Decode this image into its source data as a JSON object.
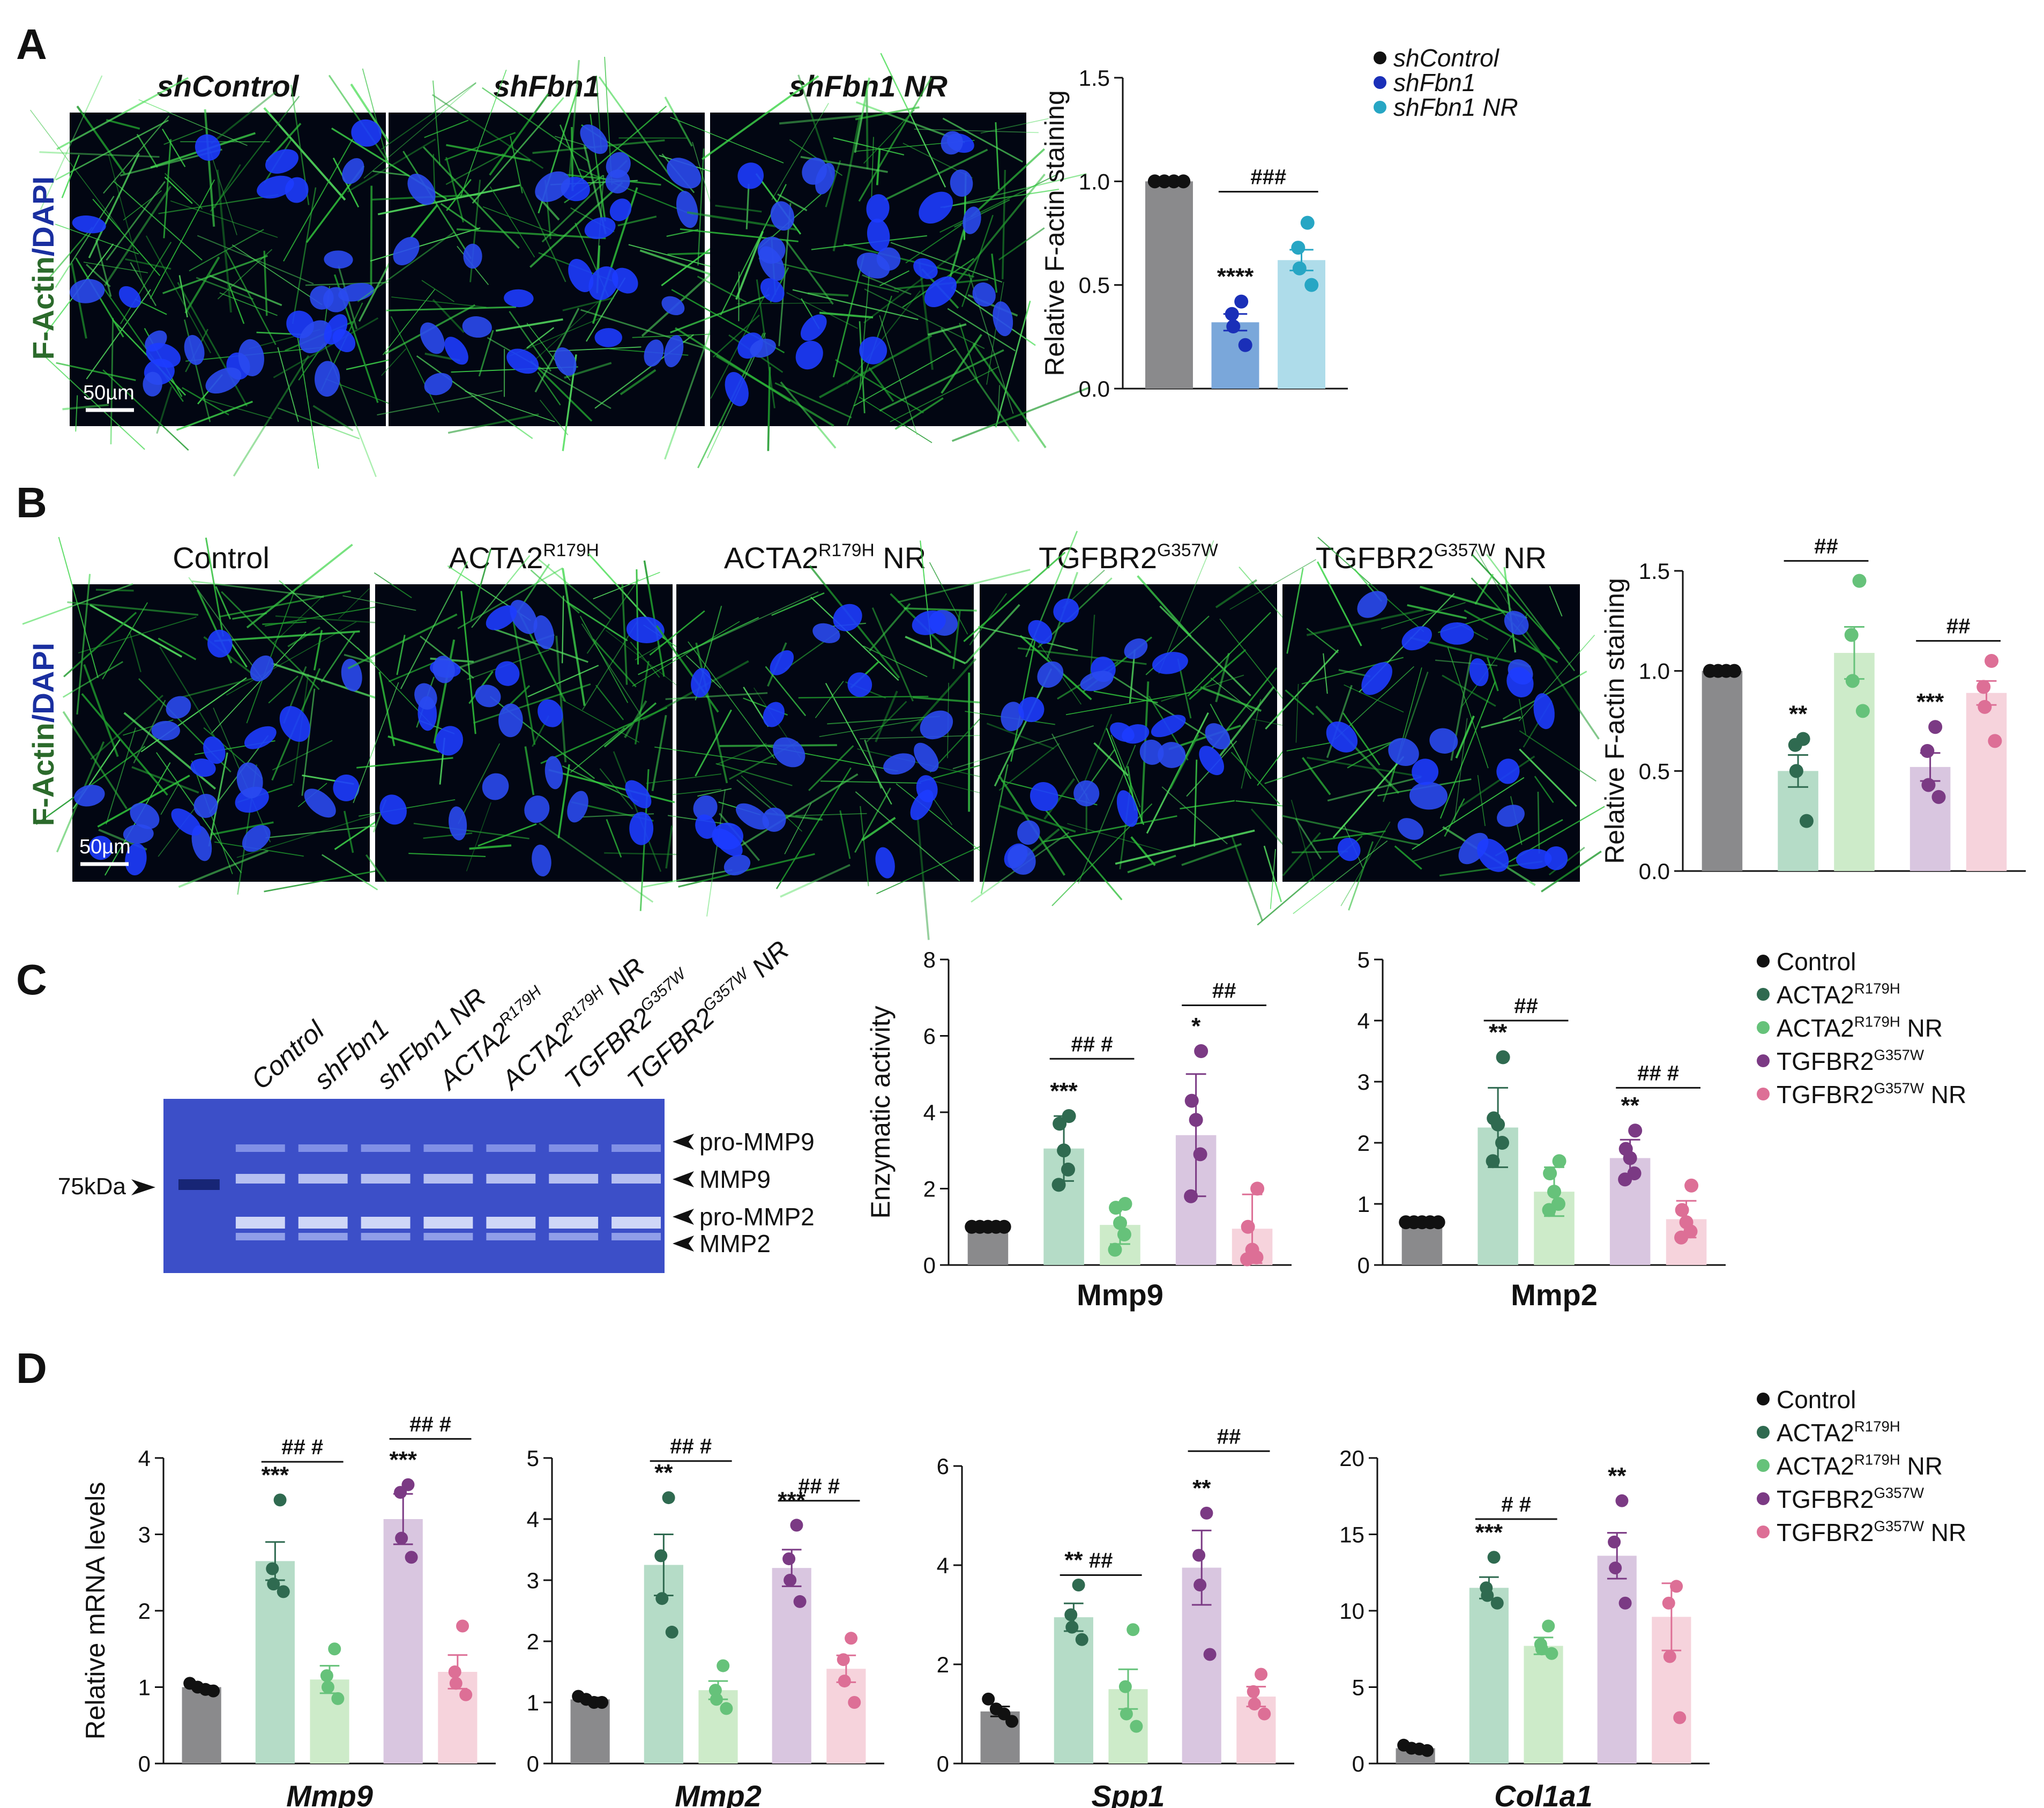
{
  "panels": {
    "A": {
      "letter": "A",
      "micrograph_titles": [
        "shControl",
        "shFbn1",
        "shFbn1 NR"
      ],
      "stain_label_part1": "F-Actin",
      "stain_label_sep": "/",
      "stain_label_part2": "DAPI",
      "scale_bar": "50µm",
      "legend": [
        "shControl",
        "shFbn1",
        "shFbn1 NR"
      ]
    },
    "B": {
      "letter": "B",
      "micrograph_titles": [
        {
          "base": "Control",
          "sup": "",
          "tail": ""
        },
        {
          "base": "ACTA2",
          "sup": "R179H",
          "tail": ""
        },
        {
          "base": "ACTA2",
          "sup": "R179H",
          "tail": " NR"
        },
        {
          "base": "TGFBR2",
          "sup": "G357W",
          "tail": ""
        },
        {
          "base": "TGFBR2",
          "sup": "G357W",
          "tail": " NR"
        }
      ],
      "stain_label_part1": "F-Actin",
      "stain_label_sep": "/",
      "stain_label_part2": "DAPI",
      "scale_bar": "50µm"
    },
    "C": {
      "letter": "C",
      "gel_lanes": [
        {
          "base": "Control",
          "sup": "",
          "tail": ""
        },
        {
          "base": "shFbn1",
          "sup": "",
          "tail": ""
        },
        {
          "base": "shFbn1 NR",
          "sup": "",
          "tail": ""
        },
        {
          "base": "ACTA2",
          "sup": "R179H",
          "tail": ""
        },
        {
          "base": "ACTA2",
          "sup": "R179H",
          "tail": " NR"
        },
        {
          "base": "TGFBR2",
          "sup": "G357W",
          "tail": ""
        },
        {
          "base": "TGFBR2",
          "sup": "G357W",
          "tail": " NR"
        }
      ],
      "marker": "75kDa",
      "bands": [
        "pro-MMP9",
        "MMP9",
        "pro-MMP2",
        "MMP2"
      ],
      "legend": [
        {
          "base": "Control",
          "sup": "",
          "tail": ""
        },
        {
          "base": "ACTA2",
          "sup": "R179H",
          "tail": ""
        },
        {
          "base": "ACTA2",
          "sup": "R179H",
          "tail": " NR"
        },
        {
          "base": "TGFBR2",
          "sup": "G357W",
          "tail": ""
        },
        {
          "base": "TGFBR2",
          "sup": "G357W",
          "tail": " NR"
        }
      ]
    },
    "D": {
      "letter": "D",
      "legend": [
        {
          "base": "Control",
          "sup": "",
          "tail": ""
        },
        {
          "base": "ACTA2",
          "sup": "R179H",
          "tail": ""
        },
        {
          "base": "ACTA2",
          "sup": "R179H",
          "tail": " NR"
        },
        {
          "base": "TGFBR2",
          "sup": "G357W",
          "tail": ""
        },
        {
          "base": "TGFBR2",
          "sup": "G357W",
          "tail": " NR"
        }
      ]
    }
  },
  "colors": {
    "control": "#8a8a8c",
    "shfbn1": "#7aa7da",
    "shfbn1_nr": "#aedcea",
    "acta2": "#b5dcc7",
    "acta2_nr": "#cdebc9",
    "tgfbr2": "#d9c6e0",
    "tgfbr2_nr": "#f6d3dc",
    "pt_control": "#111111",
    "pt_shfbn1": "#1a2fb8",
    "pt_shfbn1_nr": "#27a6c4",
    "pt_acta2": "#2f6a50",
    "pt_acta2_nr": "#66c27a",
    "pt_tgfbr2": "#7b3a84",
    "pt_tgfbr2_nr": "#dd6f96",
    "gel": "#3c4fc8",
    "dapi_label": "#1a2fa0",
    "factin_label": "#2b6a2b"
  },
  "chart_data": [
    {
      "id": "A-factin",
      "type": "bar",
      "ylabel": "Relative F-actin staining",
      "ylim": [
        0,
        1.5
      ],
      "yticks": [
        "0.0",
        "0.5",
        "1.0",
        "1.5"
      ],
      "groups": [
        {
          "name": "shControl",
          "mean": 1.0,
          "sem": 0.0,
          "points": [
            1.0,
            1.0,
            1.0,
            1.0
          ]
        },
        {
          "name": "shFbn1",
          "mean": 0.32,
          "sem": 0.04,
          "points": [
            0.42,
            0.36,
            0.3,
            0.21
          ],
          "mark": "****"
        },
        {
          "name": "shFbn1 NR",
          "mean": 0.62,
          "sem": 0.05,
          "points": [
            0.8,
            0.68,
            0.58,
            0.5
          ]
        }
      ],
      "comparisons": [
        {
          "from": 1,
          "to": 2,
          "label": "###",
          "y": 0.95
        }
      ]
    },
    {
      "id": "B-factin",
      "type": "bar",
      "ylabel": "Relative F-actin staining",
      "ylim": [
        0,
        1.5
      ],
      "yticks": [
        "0.0",
        "0.5",
        "1.0",
        "1.5"
      ],
      "groups": [
        {
          "name": "Control",
          "mean": 1.0,
          "sem": 0.0,
          "points": [
            1.0,
            1.0,
            1.0,
            1.0
          ]
        },
        {
          "name": "ACTA2 R179H",
          "mean": 0.5,
          "sem": 0.08,
          "points": [
            0.66,
            0.63,
            0.5,
            0.25
          ],
          "mark": "**"
        },
        {
          "name": "ACTA2 R179H NR",
          "mean": 1.09,
          "sem": 0.13,
          "points": [
            1.45,
            1.18,
            0.95,
            0.8
          ]
        },
        {
          "name": "TGFBR2 G357W",
          "mean": 0.52,
          "sem": 0.07,
          "points": [
            0.72,
            0.6,
            0.43,
            0.37
          ],
          "mark": "***"
        },
        {
          "name": "TGFBR2 G357W NR",
          "mean": 0.89,
          "sem": 0.06,
          "points": [
            1.05,
            0.92,
            0.82,
            0.65
          ]
        }
      ],
      "gap_after": [
        0,
        2
      ],
      "comparisons": [
        {
          "from": 1,
          "to": 2,
          "label": "##",
          "y": 1.55
        },
        {
          "from": 3,
          "to": 4,
          "label": "##",
          "y": 1.15
        }
      ]
    },
    {
      "id": "C-mmp9",
      "type": "bar",
      "title": "Mmp9",
      "ylabel": "Enzymatic activity",
      "ylim": [
        0,
        8
      ],
      "yticks": [
        "0",
        "2",
        "4",
        "6",
        "8"
      ],
      "groups": [
        {
          "name": "Control",
          "mean": 1.0,
          "sd": 0.0,
          "points": [
            1.0,
            1.0,
            1.0,
            1.0,
            1.0
          ]
        },
        {
          "name": "ACTA2 R179H",
          "mean": 3.05,
          "sd": 0.85,
          "points": [
            3.9,
            3.7,
            3.0,
            2.5,
            2.1
          ],
          "mark": "***"
        },
        {
          "name": "ACTA2 R179H NR",
          "mean": 1.05,
          "sd": 0.5,
          "points": [
            1.6,
            1.5,
            1.1,
            0.8,
            0.4
          ]
        },
        {
          "name": "TGFBR2 G357W",
          "mean": 3.4,
          "sd": 1.6,
          "points": [
            5.6,
            4.3,
            3.8,
            2.9,
            1.8
          ],
          "mark": "*"
        },
        {
          "name": "TGFBR2 G357W NR",
          "mean": 0.95,
          "sd": 0.9,
          "points": [
            2.0,
            1.0,
            0.4,
            0.2,
            0.15
          ]
        }
      ],
      "gap_after": [
        0,
        2
      ],
      "comparisons": [
        {
          "from": 1,
          "to": 2,
          "label": "## #",
          "y": 5.4
        },
        {
          "from": 3,
          "to": 4,
          "label": "##",
          "y": 6.8
        }
      ]
    },
    {
      "id": "C-mmp2",
      "type": "bar",
      "title": "Mmp2",
      "ylim": [
        0,
        5
      ],
      "yticks": [
        "0",
        "1",
        "2",
        "3",
        "4",
        "5"
      ],
      "groups": [
        {
          "name": "Control",
          "mean": 0.7,
          "sd": 0.0,
          "points": [
            0.7,
            0.7,
            0.7,
            0.7,
            0.7
          ]
        },
        {
          "name": "ACTA2 R179H",
          "mean": 2.25,
          "sd": 0.65,
          "points": [
            3.4,
            2.4,
            2.3,
            2.0,
            1.7
          ],
          "mark": "**"
        },
        {
          "name": "ACTA2 R179H NR",
          "mean": 1.2,
          "sd": 0.4,
          "points": [
            1.7,
            1.5,
            1.2,
            1.0,
            0.9
          ]
        },
        {
          "name": "TGFBR2 G357W",
          "mean": 1.75,
          "sd": 0.3,
          "points": [
            2.2,
            1.9,
            1.75,
            1.5,
            1.4
          ],
          "mark": "**"
        },
        {
          "name": "TGFBR2 G357W NR",
          "mean": 0.75,
          "sd": 0.3,
          "points": [
            1.3,
            0.9,
            0.7,
            0.55,
            0.45
          ]
        }
      ],
      "gap_after": [
        0,
        2
      ],
      "comparisons": [
        {
          "from": 1,
          "to": 2,
          "label": "##",
          "y": 4.0
        },
        {
          "from": 3,
          "to": 4,
          "label": "## #",
          "y": 2.9
        }
      ]
    },
    {
      "id": "D-mmp9",
      "type": "bar",
      "title": "Mmp9",
      "ylabel": "Relative mRNA levels",
      "ylim": [
        0,
        4
      ],
      "yticks": [
        "0",
        "1",
        "2",
        "3",
        "4"
      ],
      "groups": [
        {
          "name": "Control",
          "mean": 1.0,
          "sem": 0.02,
          "points": [
            1.05,
            1.0,
            0.97,
            0.95
          ]
        },
        {
          "name": "ACTA2 R179H",
          "mean": 2.65,
          "sem": 0.25,
          "points": [
            3.45,
            2.55,
            2.35,
            2.25
          ],
          "mark": "***"
        },
        {
          "name": "ACTA2 R179H NR",
          "mean": 1.1,
          "sem": 0.18,
          "points": [
            1.5,
            1.15,
            1.0,
            0.85
          ]
        },
        {
          "name": "TGFBR2 G357W",
          "mean": 3.2,
          "sem": 0.33,
          "points": [
            3.65,
            3.55,
            2.95,
            2.7
          ],
          "mark": "***"
        },
        {
          "name": "TGFBR2 G357W NR",
          "mean": 1.2,
          "sem": 0.22,
          "points": [
            1.8,
            1.2,
            1.05,
            0.9
          ]
        }
      ],
      "gap_after": [
        0,
        2
      ],
      "comparisons": [
        {
          "from": 1,
          "to": 2,
          "label": "## #",
          "y": 3.95
        },
        {
          "from": 3,
          "to": 4,
          "label": "## #",
          "y": 4.25
        }
      ]
    },
    {
      "id": "D-mmp2",
      "type": "bar",
      "title": "Mmp2",
      "ylim": [
        0,
        5
      ],
      "yticks": [
        "0",
        "1",
        "2",
        "3",
        "4",
        "5"
      ],
      "groups": [
        {
          "name": "Control",
          "mean": 1.05,
          "sem": 0.03,
          "points": [
            1.1,
            1.05,
            1.0,
            1.0
          ]
        },
        {
          "name": "ACTA2 R179H",
          "mean": 3.25,
          "sem": 0.5,
          "points": [
            4.35,
            3.4,
            2.7,
            2.15
          ],
          "mark": "**"
        },
        {
          "name": "ACTA2 R179H NR",
          "mean": 1.2,
          "sem": 0.15,
          "points": [
            1.6,
            1.2,
            1.05,
            0.9
          ]
        },
        {
          "name": "TGFBR2 G357W",
          "mean": 3.2,
          "sem": 0.3,
          "points": [
            3.9,
            3.35,
            3.0,
            2.65
          ],
          "mark": "***"
        },
        {
          "name": "TGFBR2 G357W NR",
          "mean": 1.55,
          "sem": 0.22,
          "points": [
            2.05,
            1.7,
            1.35,
            1.0
          ]
        }
      ],
      "gap_after": [
        0,
        2
      ],
      "comparisons": [
        {
          "from": 1,
          "to": 2,
          "label": "## #",
          "y": 4.95
        },
        {
          "from": 3,
          "to": 4,
          "label": "## #",
          "y": 4.3
        }
      ]
    },
    {
      "id": "D-spp1",
      "type": "bar",
      "title": "Spp1",
      "ylim": [
        0,
        6
      ],
      "yticks": [
        "0",
        "2",
        "4",
        "6"
      ],
      "groups": [
        {
          "name": "Control",
          "mean": 1.05,
          "sem": 0.1,
          "points": [
            1.3,
            1.1,
            1.0,
            0.85
          ]
        },
        {
          "name": "ACTA2 R179H",
          "mean": 2.95,
          "sem": 0.28,
          "points": [
            3.6,
            3.0,
            2.75,
            2.5
          ],
          "mark": "**"
        },
        {
          "name": "ACTA2 R179H NR",
          "mean": 1.5,
          "sem": 0.4,
          "points": [
            2.7,
            1.55,
            1.0,
            0.75
          ]
        },
        {
          "name": "TGFBR2 G357W",
          "mean": 3.95,
          "sem": 0.75,
          "points": [
            5.05,
            4.2,
            3.6,
            2.2
          ],
          "mark": "**"
        },
        {
          "name": "TGFBR2 G357W NR",
          "mean": 1.35,
          "sem": 0.2,
          "points": [
            1.8,
            1.45,
            1.2,
            1.0
          ]
        }
      ],
      "gap_after": [
        0,
        2
      ],
      "comparisons": [
        {
          "from": 1,
          "to": 2,
          "label": "##",
          "y": 3.8
        },
        {
          "from": 3,
          "to": 4,
          "label": "##",
          "y": 6.3
        }
      ]
    },
    {
      "id": "D-col1a1",
      "type": "bar",
      "title": "Col1a1",
      "ylim": [
        0,
        20
      ],
      "yticks": [
        "0",
        "5",
        "10",
        "15",
        "20"
      ],
      "groups": [
        {
          "name": "Control",
          "mean": 1.0,
          "sem": 0.1,
          "points": [
            1.2,
            1.0,
            0.95,
            0.85
          ]
        },
        {
          "name": "ACTA2 R179H",
          "mean": 11.5,
          "sem": 0.7,
          "points": [
            13.5,
            11.5,
            11.0,
            10.5
          ],
          "mark": "***"
        },
        {
          "name": "ACTA2 R179H NR",
          "mean": 7.7,
          "sem": 0.55,
          "points": [
            9.0,
            7.8,
            7.5,
            7.2
          ]
        },
        {
          "name": "TGFBR2 G357W",
          "mean": 13.6,
          "sem": 1.5,
          "points": [
            17.2,
            14.5,
            12.8,
            10.5
          ],
          "mark": "**"
        },
        {
          "name": "TGFBR2 G357W NR",
          "mean": 9.6,
          "sem": 2.2,
          "points": [
            11.6,
            10.5,
            7.0,
            3.0
          ]
        }
      ],
      "gap_after": [
        0,
        2
      ],
      "comparisons": [
        {
          "from": 1,
          "to": 2,
          "label": "# #",
          "y": 16.0
        }
      ]
    }
  ]
}
